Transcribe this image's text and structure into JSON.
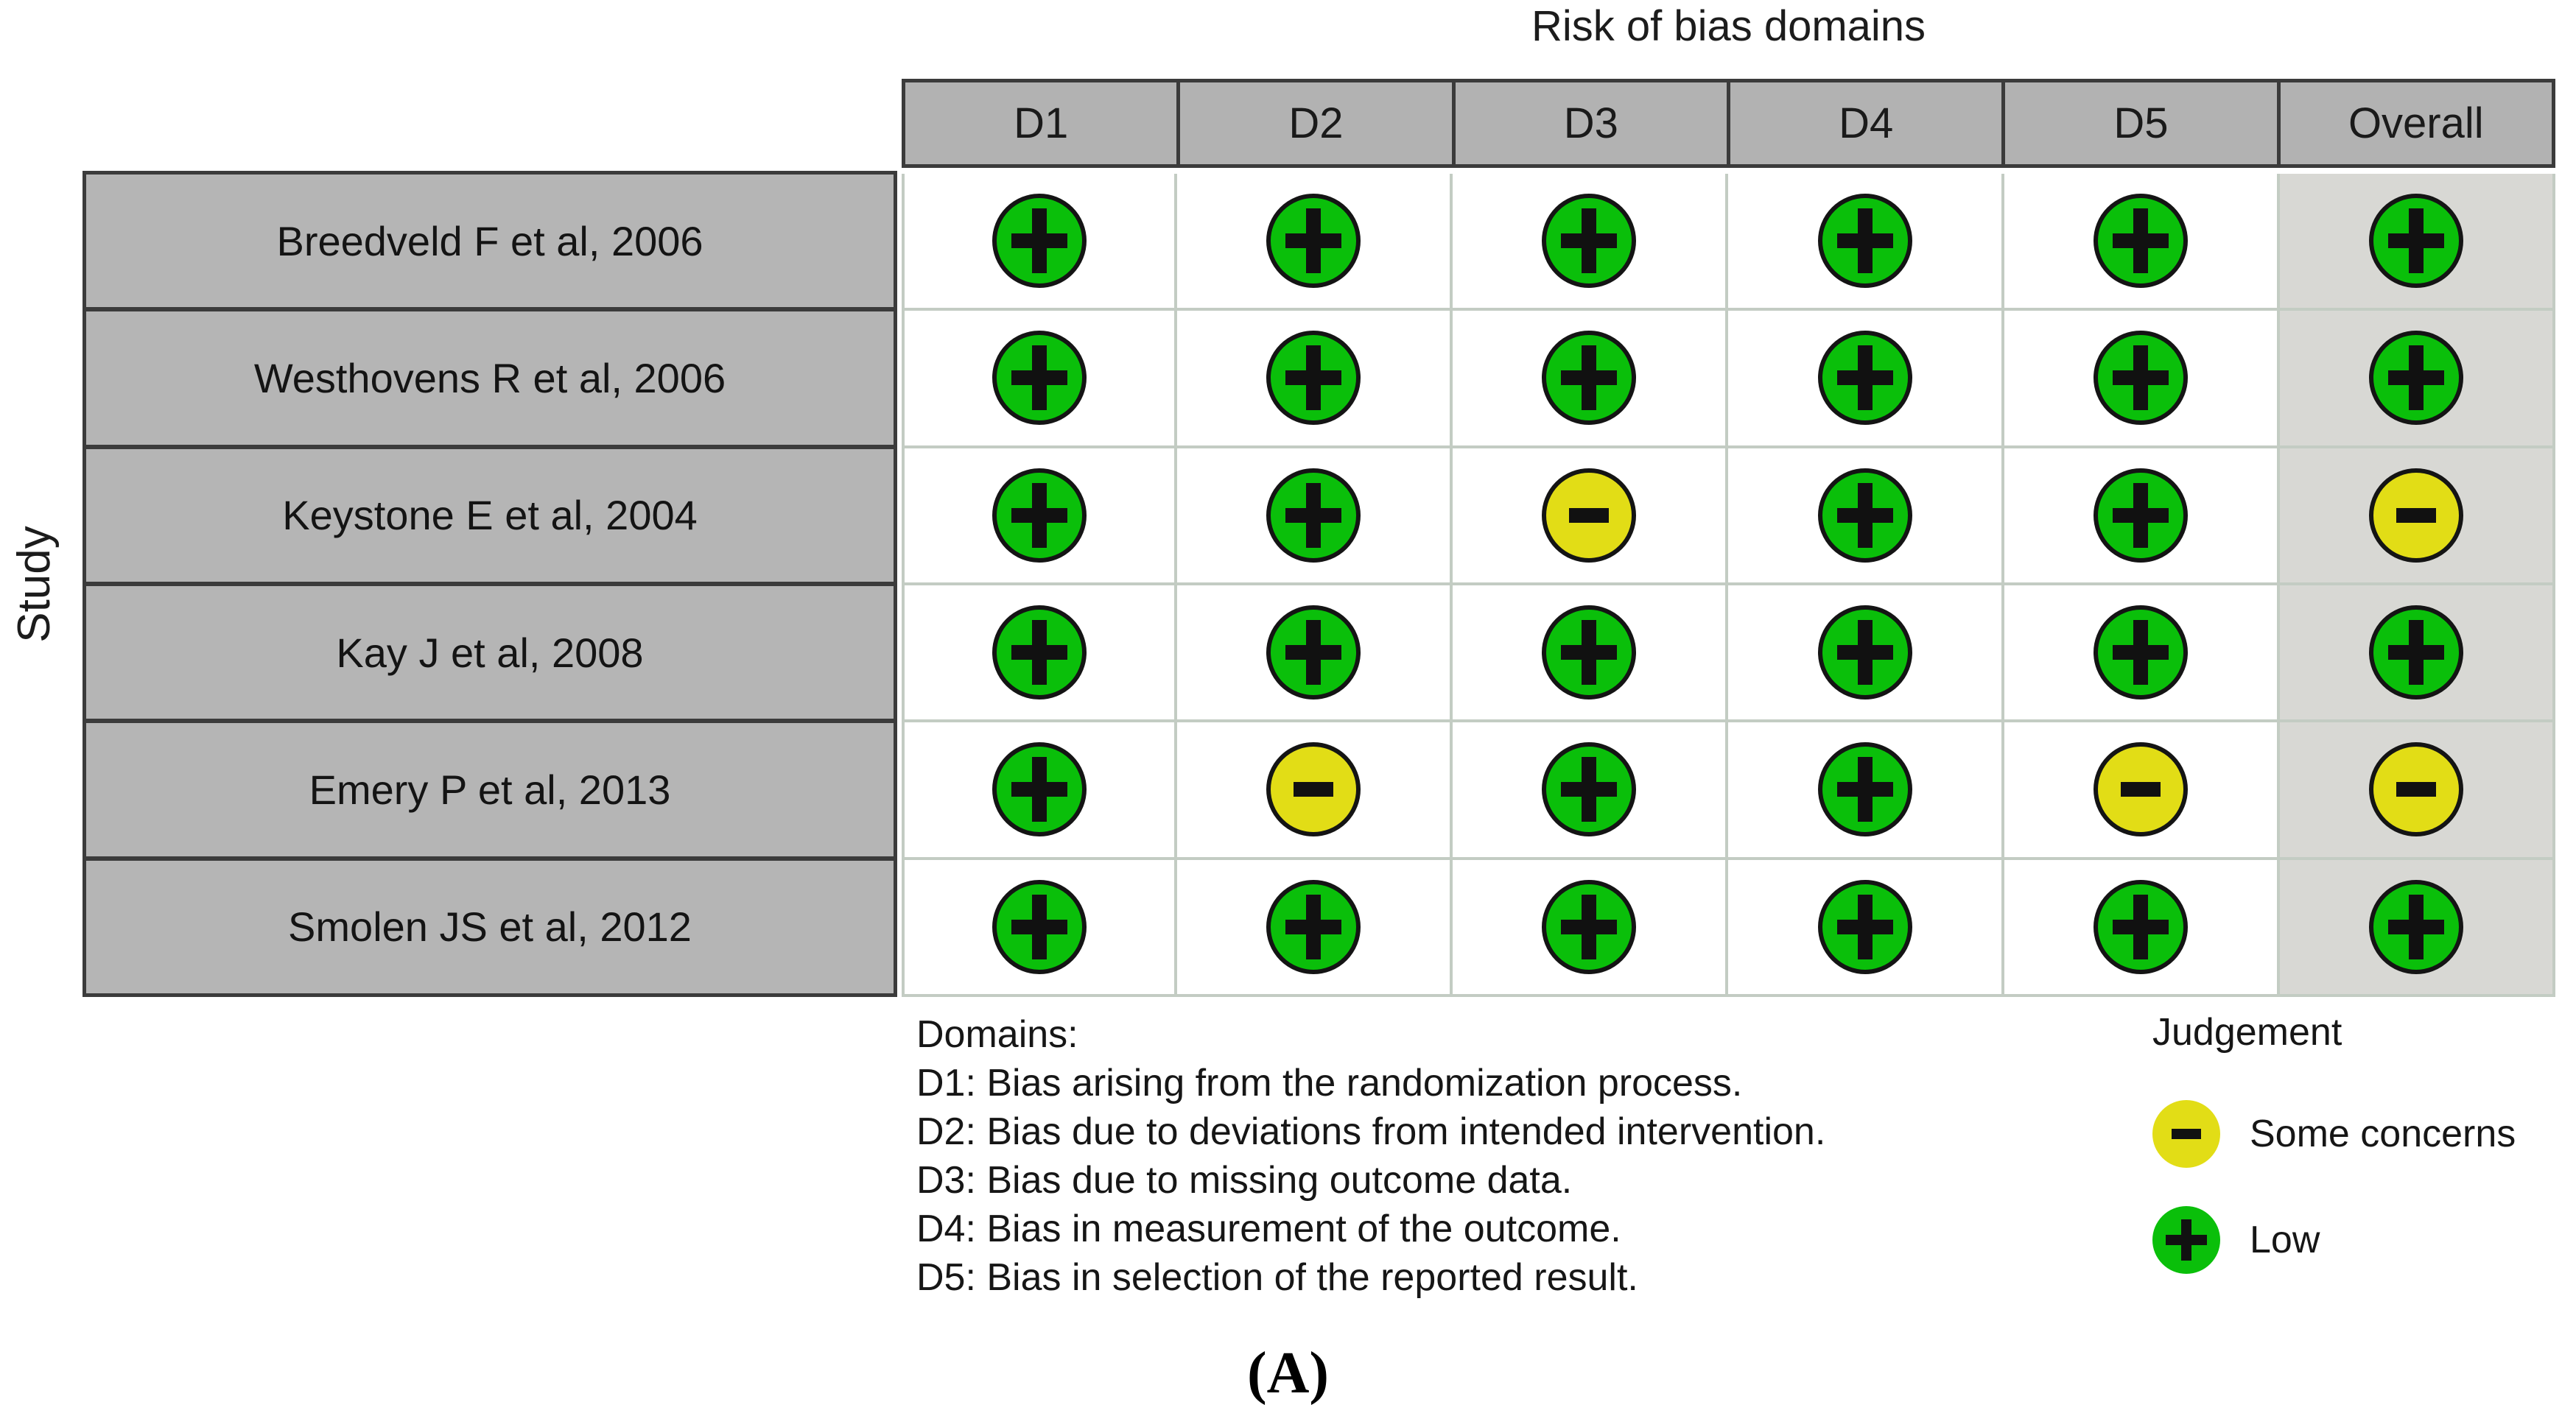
{
  "chart_data": {
    "type": "heatmap",
    "title": "Risk of bias domains",
    "ylabel": "Study",
    "columns": [
      "D1",
      "D2",
      "D3",
      "D4",
      "D5",
      "Overall"
    ],
    "rows": [
      "Breedveld F et al, 2006",
      "Westhovens R et al, 2006",
      "Keystone E et al, 2004",
      "Kay J et al, 2008",
      "Emery P et al, 2013",
      "Smolen JS et al, 2012"
    ],
    "values": [
      [
        "low",
        "low",
        "low",
        "low",
        "low",
        "low"
      ],
      [
        "low",
        "low",
        "low",
        "low",
        "low",
        "low"
      ],
      [
        "low",
        "low",
        "some",
        "low",
        "low",
        "some"
      ],
      [
        "low",
        "low",
        "low",
        "low",
        "low",
        "low"
      ],
      [
        "low",
        "some",
        "low",
        "low",
        "some",
        "some"
      ],
      [
        "low",
        "low",
        "low",
        "low",
        "low",
        "low"
      ]
    ],
    "judgement_symbols": {
      "low": "+",
      "some": "-"
    },
    "judgement_labels": {
      "low": "Low",
      "some": "Some concerns"
    },
    "judgement_colors": {
      "low": "#0abf0a",
      "some": "#e2dd16"
    },
    "legend": {
      "domains_title": "Domains:",
      "domains": [
        "D1: Bias arising from the randomization process.",
        "D2: Bias due to deviations from intended intervention.",
        "D3: Bias due to missing outcome data.",
        "D4: Bias in measurement of the outcome.",
        "D5: Bias in selection of the reported result."
      ],
      "judgement_title": "Judgement",
      "judgement_order": [
        "some",
        "low"
      ]
    },
    "caption": "(A)",
    "ui_colors": {
      "header_bg": "#b2b2b2",
      "study_bg": "#b5b5b5",
      "overall_bg": "#d8d8d4",
      "dark_border": "#3b3b3b",
      "light_border": "#c3ccc3",
      "symbol_color": "#111111"
    }
  }
}
